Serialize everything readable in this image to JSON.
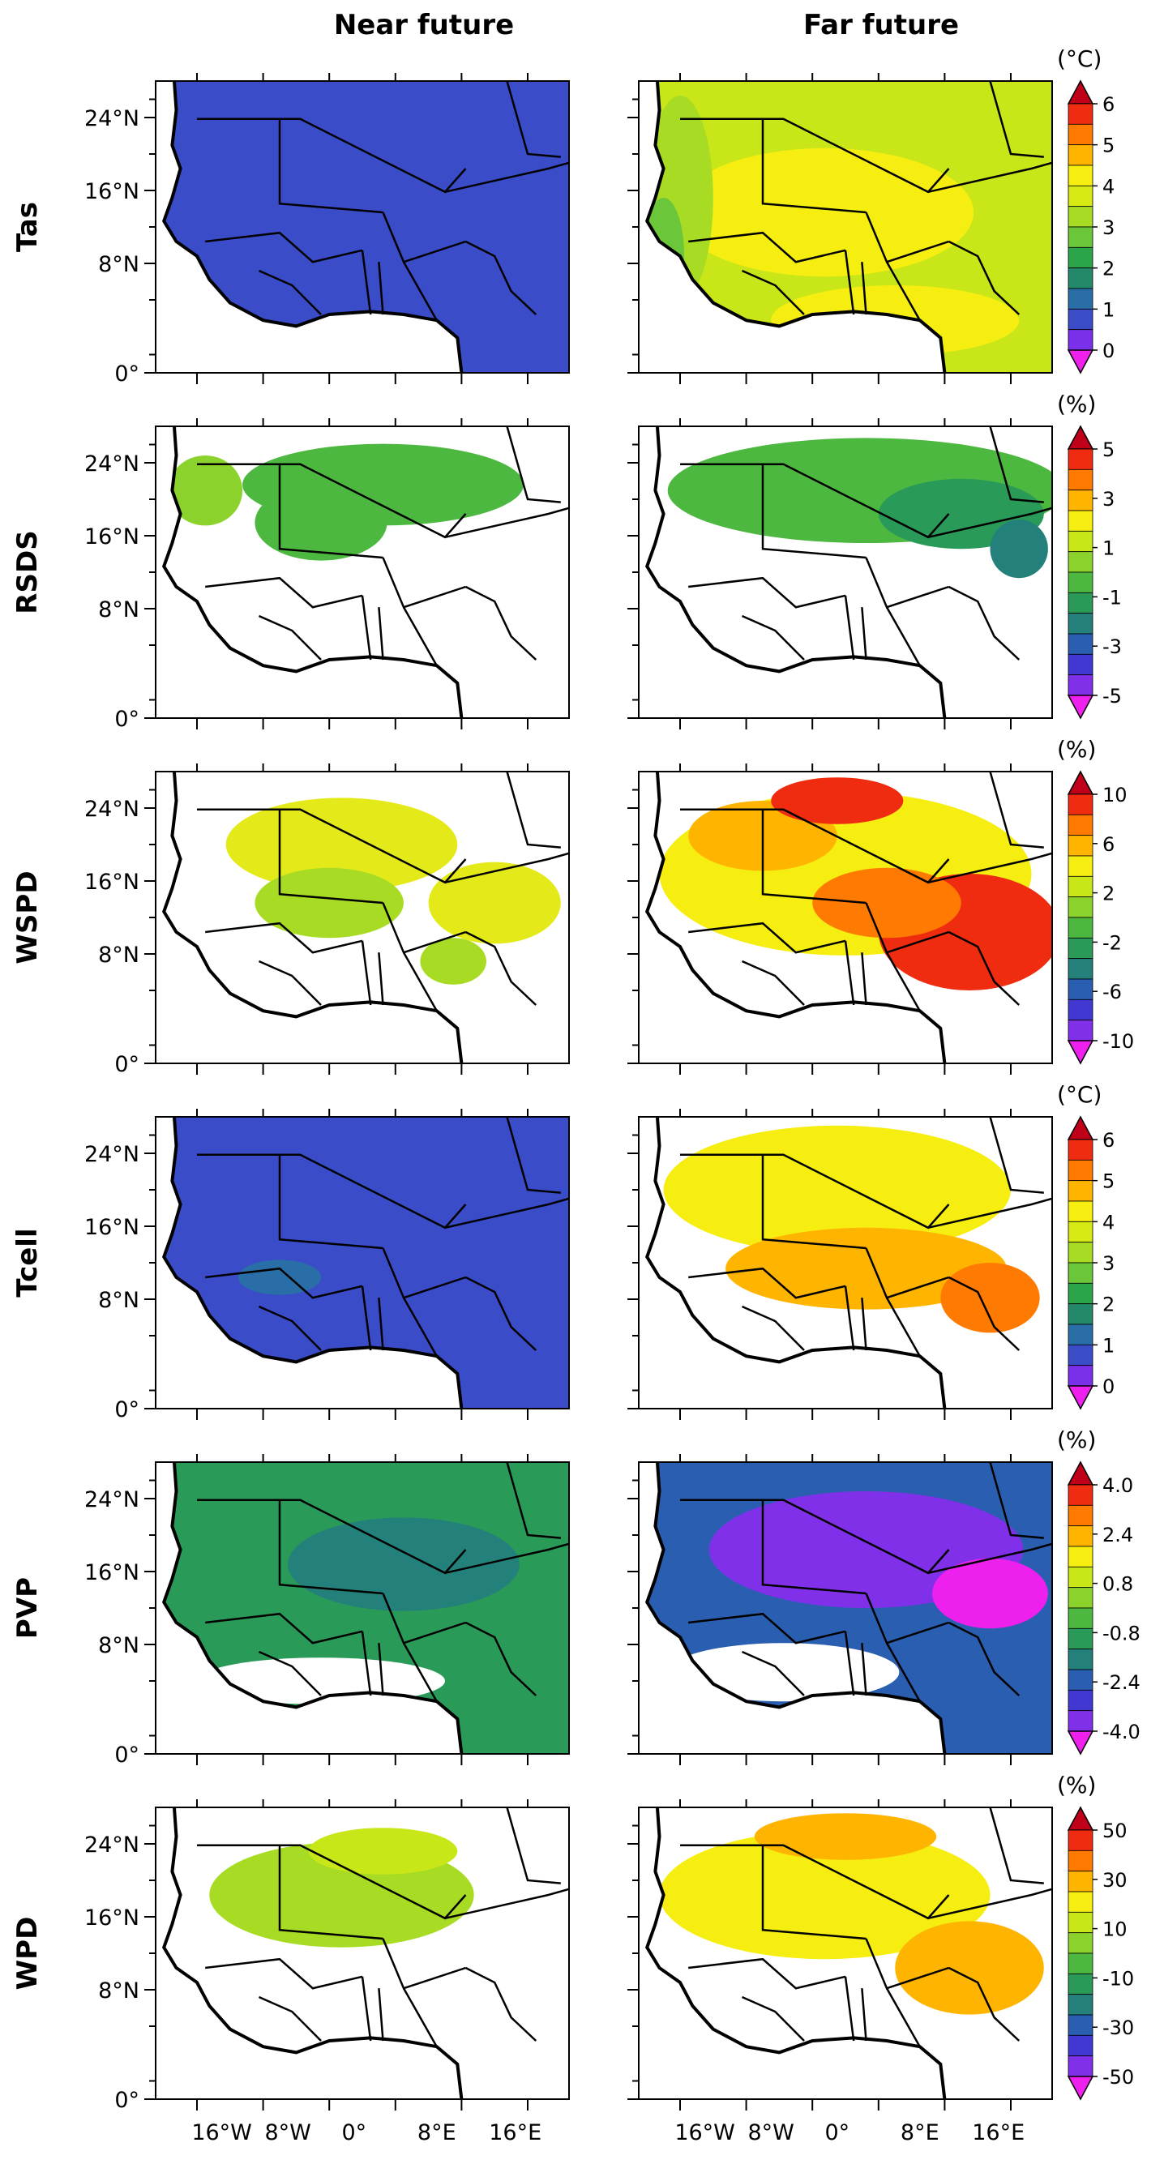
{
  "chart_data": {
    "type": "heatmap",
    "columns": [
      "Near future",
      "Far future"
    ],
    "lat_ticks": [
      "24°N",
      "16°N",
      "8°N",
      "0°"
    ],
    "lon_ticks": [
      "16°W",
      "8°W",
      "0°",
      "8°E",
      "16°E"
    ],
    "rows": [
      {
        "name": "Tas",
        "unit": "(°C)",
        "colorbar_labels": [
          "6",
          "5",
          "4",
          "3",
          "2",
          "1",
          "0"
        ],
        "colors": [
          "#c00018",
          "#f02c10",
          "#ff7a00",
          "#ffb400",
          "#f5ee10",
          "#d8ea14",
          "#a8dc24",
          "#6cc63a",
          "#2ca44a",
          "#24886a",
          "#2a6ea8",
          "#3a4cc8",
          "#7a30e8",
          "#ee20ee"
        ],
        "near": {
          "base": "#3a4cc8",
          "blobs": []
        },
        "far": {
          "base": "#c8e618",
          "blobs": [
            {
              "color": "#f5ee10",
              "cx": 0.45,
              "cy": 0.45,
              "rx": 0.36,
              "ry": 0.22
            },
            {
              "color": "#f5ee10",
              "cx": 0.62,
              "cy": 0.82,
              "rx": 0.3,
              "ry": 0.12
            },
            {
              "color": "#a8dc24",
              "cx": 0.1,
              "cy": 0.4,
              "rx": 0.08,
              "ry": 0.35
            },
            {
              "color": "#6cc63a",
              "cx": 0.06,
              "cy": 0.6,
              "rx": 0.05,
              "ry": 0.2
            }
          ]
        }
      },
      {
        "name": "RSDS",
        "unit": "(%)",
        "colorbar_labels": [
          "5",
          "3",
          "1",
          "-1",
          "-3",
          "-5"
        ],
        "colors": [
          "#c00018",
          "#f02c10",
          "#ff7a00",
          "#ffb400",
          "#f5ee10",
          "#c8e618",
          "#8cd22c",
          "#4cb840",
          "#2a9a58",
          "#24807a",
          "#2a5eb0",
          "#4038d0",
          "#8030e8",
          "#ee20ee"
        ],
        "near": {
          "base": null,
          "blobs": [
            {
              "color": "#4cb840",
              "cx": 0.55,
              "cy": 0.2,
              "rx": 0.34,
              "ry": 0.14
            },
            {
              "color": "#4cb840",
              "cx": 0.4,
              "cy": 0.33,
              "rx": 0.16,
              "ry": 0.13
            },
            {
              "color": "#8cd22c",
              "cx": 0.12,
              "cy": 0.22,
              "rx": 0.09,
              "ry": 0.12
            }
          ]
        },
        "far": {
          "base": null,
          "blobs": [
            {
              "color": "#4cb840",
              "cx": 0.55,
              "cy": 0.22,
              "rx": 0.48,
              "ry": 0.18
            },
            {
              "color": "#2a9a58",
              "cx": 0.78,
              "cy": 0.3,
              "rx": 0.2,
              "ry": 0.12
            },
            {
              "color": "#24807a",
              "cx": 0.92,
              "cy": 0.42,
              "rx": 0.07,
              "ry": 0.1
            }
          ]
        }
      },
      {
        "name": "WSPD",
        "unit": "(%)",
        "colorbar_labels": [
          "10",
          "6",
          "2",
          "-2",
          "-6",
          "-10"
        ],
        "colors": [
          "#c00018",
          "#f02c10",
          "#ff7a00",
          "#ffb400",
          "#f5ee10",
          "#c8e618",
          "#8cd22c",
          "#4cb840",
          "#2a9a58",
          "#24807a",
          "#2a5eb0",
          "#4038d0",
          "#8030e8",
          "#ee20ee"
        ],
        "near": {
          "base": null,
          "blobs": [
            {
              "color": "#e4ea1a",
              "cx": 0.45,
              "cy": 0.25,
              "rx": 0.28,
              "ry": 0.16
            },
            {
              "color": "#a8dc24",
              "cx": 0.42,
              "cy": 0.45,
              "rx": 0.18,
              "ry": 0.12
            },
            {
              "color": "#e4ea1a",
              "cx": 0.82,
              "cy": 0.45,
              "rx": 0.16,
              "ry": 0.14
            },
            {
              "color": "#a8dc24",
              "cx": 0.72,
              "cy": 0.65,
              "rx": 0.08,
              "ry": 0.08
            }
          ]
        },
        "far": {
          "base": null,
          "blobs": [
            {
              "color": "#f5ee10",
              "cx": 0.5,
              "cy": 0.35,
              "rx": 0.45,
              "ry": 0.28
            },
            {
              "color": "#ffb400",
              "cx": 0.3,
              "cy": 0.22,
              "rx": 0.18,
              "ry": 0.12
            },
            {
              "color": "#f02c10",
              "cx": 0.48,
              "cy": 0.1,
              "rx": 0.16,
              "ry": 0.08
            },
            {
              "color": "#f02c10",
              "cx": 0.8,
              "cy": 0.55,
              "rx": 0.22,
              "ry": 0.2
            },
            {
              "color": "#ff7a00",
              "cx": 0.6,
              "cy": 0.45,
              "rx": 0.18,
              "ry": 0.12
            }
          ]
        }
      },
      {
        "name": "Tcell",
        "unit": "(°C)",
        "colorbar_labels": [
          "6",
          "5",
          "4",
          "3",
          "2",
          "1",
          "0"
        ],
        "colors": [
          "#c00018",
          "#f02c10",
          "#ff7a00",
          "#ffb400",
          "#f5ee10",
          "#d8ea14",
          "#a8dc24",
          "#6cc63a",
          "#2ca44a",
          "#24886a",
          "#2a6ea8",
          "#3a4cc8",
          "#7a30e8",
          "#ee20ee"
        ],
        "near": {
          "base": "#3a4cc8",
          "blobs": [
            {
              "color": "#2a6ea8",
              "cx": 0.3,
              "cy": 0.55,
              "rx": 0.1,
              "ry": 0.06
            }
          ]
        },
        "far": {
          "base": null,
          "blobs": [
            {
              "color": "#f5ee10",
              "cx": 0.48,
              "cy": 0.25,
              "rx": 0.42,
              "ry": 0.22
            },
            {
              "color": "#ffb400",
              "cx": 0.55,
              "cy": 0.52,
              "rx": 0.34,
              "ry": 0.14
            },
            {
              "color": "#ff7a00",
              "cx": 0.85,
              "cy": 0.62,
              "rx": 0.12,
              "ry": 0.12
            }
          ]
        }
      },
      {
        "name": "PVP",
        "unit": "(%)",
        "colorbar_labels": [
          "4.0",
          "2.4",
          "0.8",
          "-0.8",
          "-2.4",
          "-4.0"
        ],
        "colors": [
          "#c00018",
          "#f02c10",
          "#ff7a00",
          "#ffb400",
          "#f5ee10",
          "#c8e618",
          "#8cd22c",
          "#4cb840",
          "#2a9a58",
          "#24807a",
          "#2a5eb0",
          "#4038d0",
          "#8030e8",
          "#ee20ee"
        ],
        "near": {
          "base": "#2a9a58",
          "blobs": [
            {
              "color": "#24807a",
              "cx": 0.6,
              "cy": 0.35,
              "rx": 0.28,
              "ry": 0.16
            },
            {
              "color": "#ffffff",
              "cx": 0.4,
              "cy": 0.75,
              "rx": 0.3,
              "ry": 0.08
            }
          ]
        },
        "far": {
          "base": "#2a5eb0",
          "blobs": [
            {
              "color": "#8030e8",
              "cx": 0.55,
              "cy": 0.3,
              "rx": 0.38,
              "ry": 0.2
            },
            {
              "color": "#ee20ee",
              "cx": 0.85,
              "cy": 0.45,
              "rx": 0.14,
              "ry": 0.12
            },
            {
              "color": "#ffffff",
              "cx": 0.35,
              "cy": 0.72,
              "rx": 0.28,
              "ry": 0.1
            }
          ]
        }
      },
      {
        "name": "WPD",
        "unit": "(%)",
        "colorbar_labels": [
          "50",
          "30",
          "10",
          "-10",
          "-30",
          "-50"
        ],
        "colors": [
          "#c00018",
          "#f02c10",
          "#ff7a00",
          "#ffb400",
          "#f5ee10",
          "#c8e618",
          "#8cd22c",
          "#4cb840",
          "#2a9a58",
          "#24807a",
          "#2a5eb0",
          "#4038d0",
          "#8030e8",
          "#ee20ee"
        ],
        "near": {
          "base": null,
          "blobs": [
            {
              "color": "#a8dc24",
              "cx": 0.45,
              "cy": 0.3,
              "rx": 0.32,
              "ry": 0.18
            },
            {
              "color": "#c8e618",
              "cx": 0.55,
              "cy": 0.15,
              "rx": 0.18,
              "ry": 0.08
            }
          ]
        },
        "far": {
          "base": null,
          "blobs": [
            {
              "color": "#f5ee10",
              "cx": 0.45,
              "cy": 0.3,
              "rx": 0.4,
              "ry": 0.22
            },
            {
              "color": "#ffb400",
              "cx": 0.5,
              "cy": 0.1,
              "rx": 0.22,
              "ry": 0.08
            },
            {
              "color": "#ffb400",
              "cx": 0.8,
              "cy": 0.55,
              "rx": 0.18,
              "ry": 0.16
            }
          ]
        }
      }
    ]
  }
}
